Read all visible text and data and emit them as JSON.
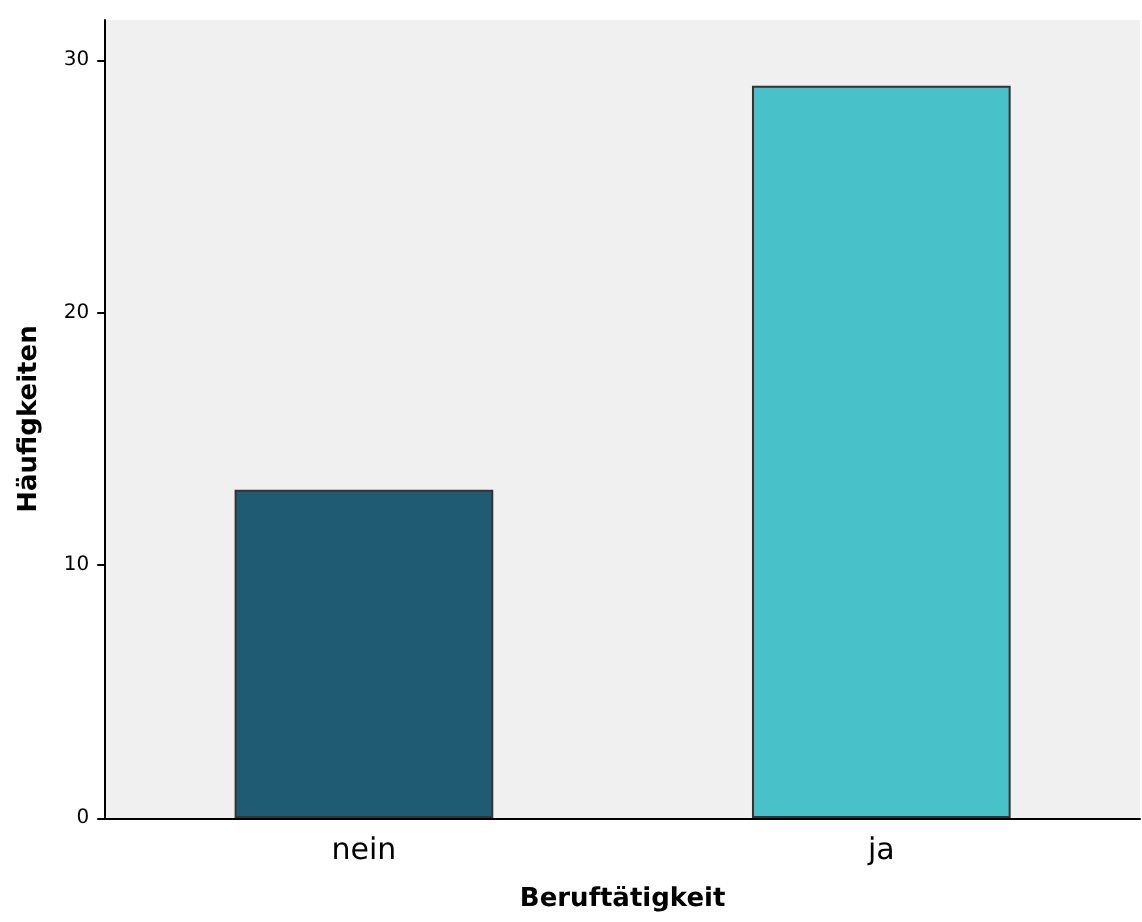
{
  "chart_data": {
    "type": "bar",
    "xlabel": "Beruftätigkeit",
    "ylabel": "Häufigkeiten",
    "categories": [
      "nein",
      "ja"
    ],
    "values": [
      13,
      29
    ],
    "colors": [
      "#1f5c73",
      "#48c2c8"
    ],
    "ylim": [
      0,
      31.6
    ],
    "yticks": [
      0,
      10,
      20,
      30
    ],
    "grid": false
  }
}
